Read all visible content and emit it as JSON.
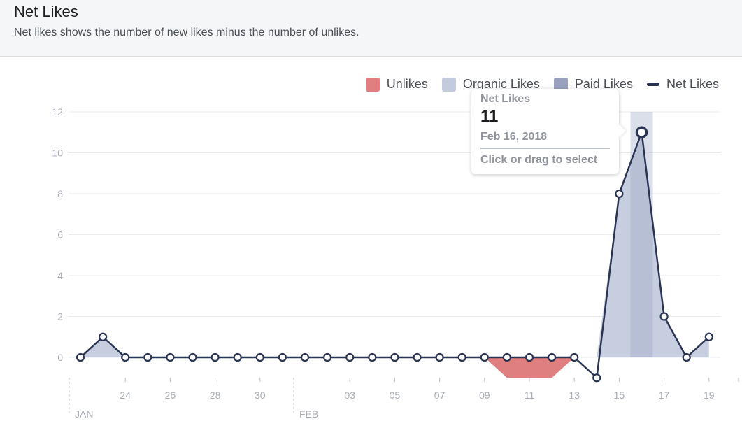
{
  "header": {
    "title": "Net Likes",
    "subtitle": "Net likes shows the number of new likes minus the number of unlikes."
  },
  "legend": [
    {
      "label": "Unlikes",
      "kind": "box",
      "color": "#e07f7f",
      "icon": "unlikes-swatch"
    },
    {
      "label": "Organic Likes",
      "kind": "box",
      "color": "#c4cbdd",
      "icon": "organic-likes-swatch"
    },
    {
      "label": "Paid Likes",
      "kind": "box",
      "color": "#98a2bf",
      "icon": "paid-likes-swatch"
    },
    {
      "label": "Net Likes",
      "kind": "line",
      "color": "#2a3553",
      "icon": "net-likes-line"
    }
  ],
  "tooltip": {
    "label": "Net Likes",
    "value": "11",
    "date": "Feb 16, 2018",
    "hint": "Click or drag to select"
  },
  "chart_data": {
    "type": "line",
    "dates": [
      "2018-01-22",
      "2018-01-23",
      "2018-01-24",
      "2018-01-25",
      "2018-01-26",
      "2018-01-27",
      "2018-01-28",
      "2018-01-29",
      "2018-01-30",
      "2018-01-31",
      "2018-02-01",
      "2018-02-02",
      "2018-02-03",
      "2018-02-04",
      "2018-02-05",
      "2018-02-06",
      "2018-02-07",
      "2018-02-08",
      "2018-02-09",
      "2018-02-10",
      "2018-02-11",
      "2018-02-12",
      "2018-02-13",
      "2018-02-14",
      "2018-02-15",
      "2018-02-16",
      "2018-02-17",
      "2018-02-18",
      "2018-02-19"
    ],
    "series": [
      {
        "name": "Net Likes",
        "values": [
          0,
          1,
          0,
          0,
          0,
          0,
          0,
          0,
          0,
          0,
          0,
          0,
          0,
          0,
          0,
          0,
          0,
          0,
          0,
          0,
          0,
          0,
          0,
          -1,
          8,
          11,
          2,
          0,
          1
        ]
      },
      {
        "name": "Unlikes",
        "values": [
          0,
          0,
          0,
          0,
          0,
          0,
          0,
          0,
          0,
          0,
          0,
          0,
          0,
          0,
          0,
          0,
          0,
          0,
          0,
          1,
          1,
          1,
          0,
          0,
          0,
          0,
          0,
          0,
          0
        ]
      }
    ],
    "xticks": [
      {
        "date": "2018-01-24",
        "label": "24"
      },
      {
        "date": "2018-01-26",
        "label": "26"
      },
      {
        "date": "2018-01-28",
        "label": "28"
      },
      {
        "date": "2018-01-30",
        "label": "30"
      },
      {
        "date": "2018-02-03",
        "label": "03"
      },
      {
        "date": "2018-02-05",
        "label": "05"
      },
      {
        "date": "2018-02-07",
        "label": "07"
      },
      {
        "date": "2018-02-09",
        "label": "09"
      },
      {
        "date": "2018-02-11",
        "label": "11"
      },
      {
        "date": "2018-02-13",
        "label": "13"
      },
      {
        "date": "2018-02-15",
        "label": "15"
      },
      {
        "date": "2018-02-17",
        "label": "17"
      },
      {
        "date": "2018-02-19",
        "label": "19"
      }
    ],
    "month_labels": [
      {
        "date": "2018-01-22",
        "label": "JAN"
      },
      {
        "date": "2018-02-01",
        "label": "FEB"
      }
    ],
    "yticks": [
      0,
      2,
      4,
      6,
      8,
      10,
      12
    ],
    "ylim": [
      -1,
      12
    ],
    "grid": true,
    "legend_position": "top-right",
    "highlighted_date": "2018-02-16",
    "colors": {
      "line": "#2a3553",
      "organic_area": "#c4cbdd",
      "paid_area": "#98a2bf",
      "unlikes_area": "#e07f7f",
      "grid": "#e9ebee",
      "tick_text": "#a9adb5"
    }
  }
}
